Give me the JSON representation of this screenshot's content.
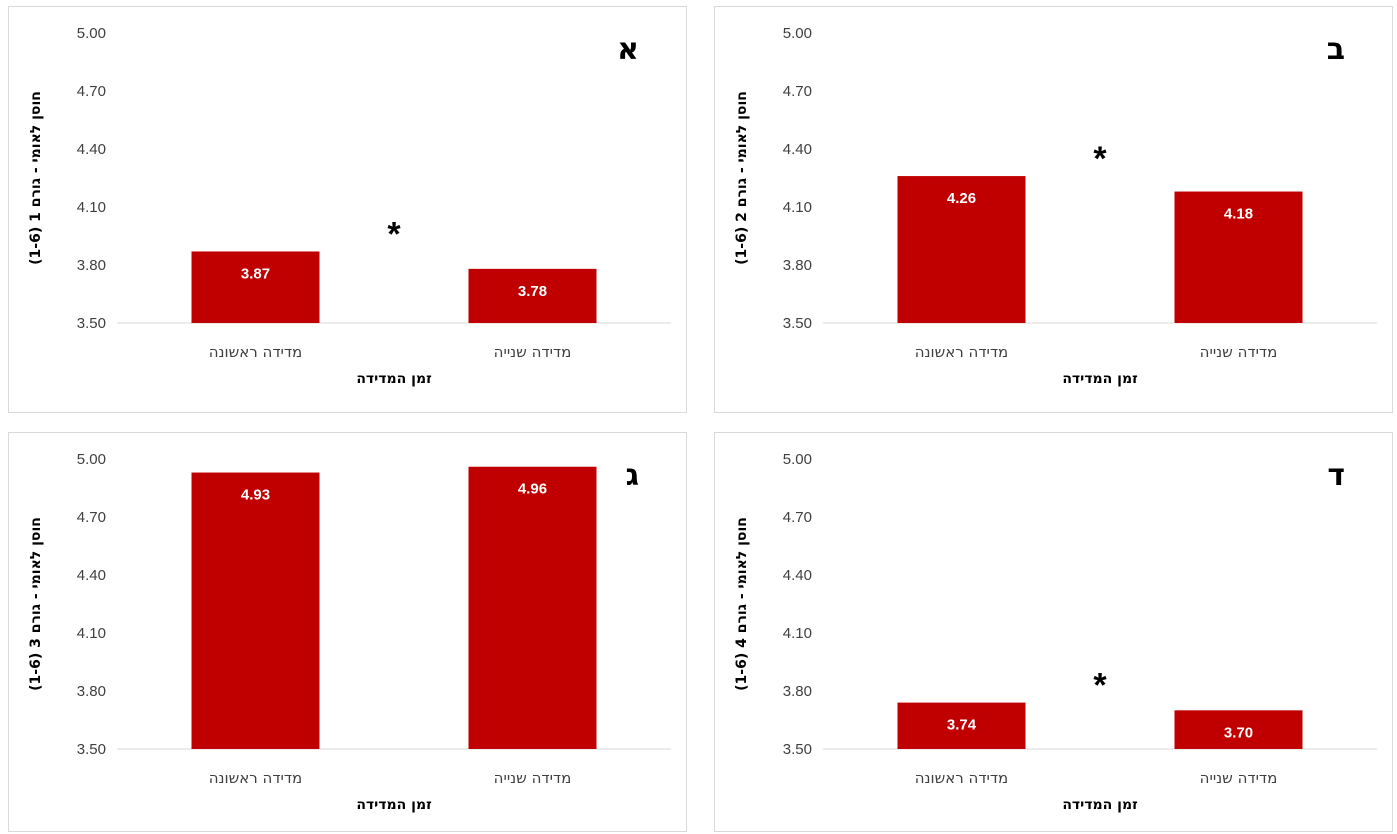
{
  "colors": {
    "bar": "#c00000",
    "axis": "#d9d9d9",
    "border": "#d9d9d9"
  },
  "chart_data": [
    {
      "type": "bar",
      "panel_letter": "א",
      "categories": [
        "מדידה ראשונה",
        "מדידה שנייה"
      ],
      "values": [
        3.87,
        3.78
      ],
      "data_labels": [
        "3.87",
        "3.78"
      ],
      "xlabel": "זמן המדידה",
      "ylabel": "חוסן לאומי - גורם 1 (1-6)",
      "ylim": [
        3.5,
        5.0
      ],
      "yticks": [
        "3.50",
        "3.80",
        "4.10",
        "4.40",
        "4.70",
        "5.00"
      ],
      "significance": "*",
      "grid": false
    },
    {
      "type": "bar",
      "panel_letter": "ב",
      "categories": [
        "מדידה ראשונה",
        "מדידה שנייה"
      ],
      "values": [
        4.26,
        4.18
      ],
      "data_labels": [
        "4.26",
        "4.18"
      ],
      "xlabel": "זמן המדידה",
      "ylabel": "חוסן לאומי - גורם 2 (1-6)",
      "ylim": [
        3.5,
        5.0
      ],
      "yticks": [
        "3.50",
        "3.80",
        "4.10",
        "4.40",
        "4.70",
        "5.00"
      ],
      "significance": "*",
      "grid": false
    },
    {
      "type": "bar",
      "panel_letter": "ג",
      "categories": [
        "מדידה ראשונה",
        "מדידה שנייה"
      ],
      "values": [
        4.93,
        4.96
      ],
      "data_labels": [
        "4.93",
        "4.96"
      ],
      "xlabel": "זמן המדידה",
      "ylabel": "חוסן לאומי - גורם 3 (1-6)",
      "ylim": [
        3.5,
        5.0
      ],
      "yticks": [
        "3.50",
        "3.80",
        "4.10",
        "4.40",
        "4.70",
        "5.00"
      ],
      "significance": "",
      "grid": false
    },
    {
      "type": "bar",
      "panel_letter": "ד",
      "categories": [
        "מדידה ראשונה",
        "מדידה שנייה"
      ],
      "values": [
        3.74,
        3.7
      ],
      "data_labels": [
        "3.74",
        "3.70"
      ],
      "xlabel": "זמן המדידה",
      "ylabel": "חוסן לאומי - גורם 4 (1-6)",
      "ylim": [
        3.5,
        5.0
      ],
      "yticks": [
        "3.50",
        "3.80",
        "4.10",
        "4.40",
        "4.70",
        "5.00"
      ],
      "significance": "*",
      "grid": false
    }
  ]
}
